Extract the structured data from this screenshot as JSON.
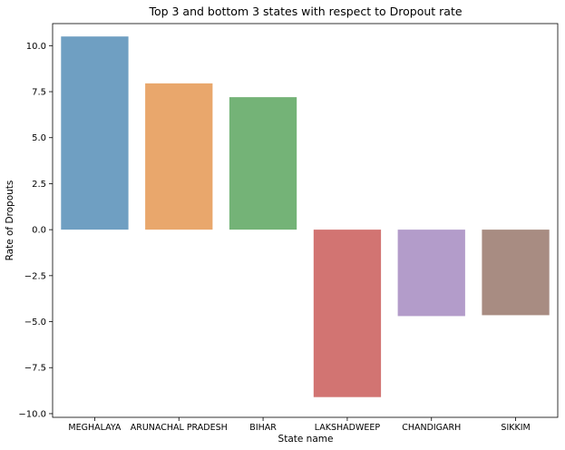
{
  "chart_data": {
    "type": "bar",
    "title": "Top 3 and bottom 3 states with respect to Dropout rate",
    "xlabel": "State name",
    "ylabel": "Rate of Dropouts",
    "categories": [
      "MEGHALAYA",
      "ARUNACHAL PRADESH",
      "BIHAR",
      "LAKSHADWEEP",
      "CHANDIGARH",
      "SIKKIM"
    ],
    "values": [
      10.5,
      7.95,
      7.2,
      -9.1,
      -4.7,
      -4.65
    ],
    "ylim": [
      -10.2,
      11.2
    ],
    "yticks": [
      10.0,
      7.5,
      5.0,
      2.5,
      0.0,
      -2.5,
      -5.0,
      -7.5,
      -10.0
    ],
    "ytick_labels": [
      "10.0",
      "7.5",
      "5.0",
      "2.5",
      "0.0",
      "−2.5",
      "−5.0",
      "−7.5",
      "−10.0"
    ],
    "colors": [
      "#6f9fc2",
      "#e9a76c",
      "#74b377",
      "#d27472",
      "#b39cca",
      "#a88c82"
    ],
    "grid": false
  }
}
